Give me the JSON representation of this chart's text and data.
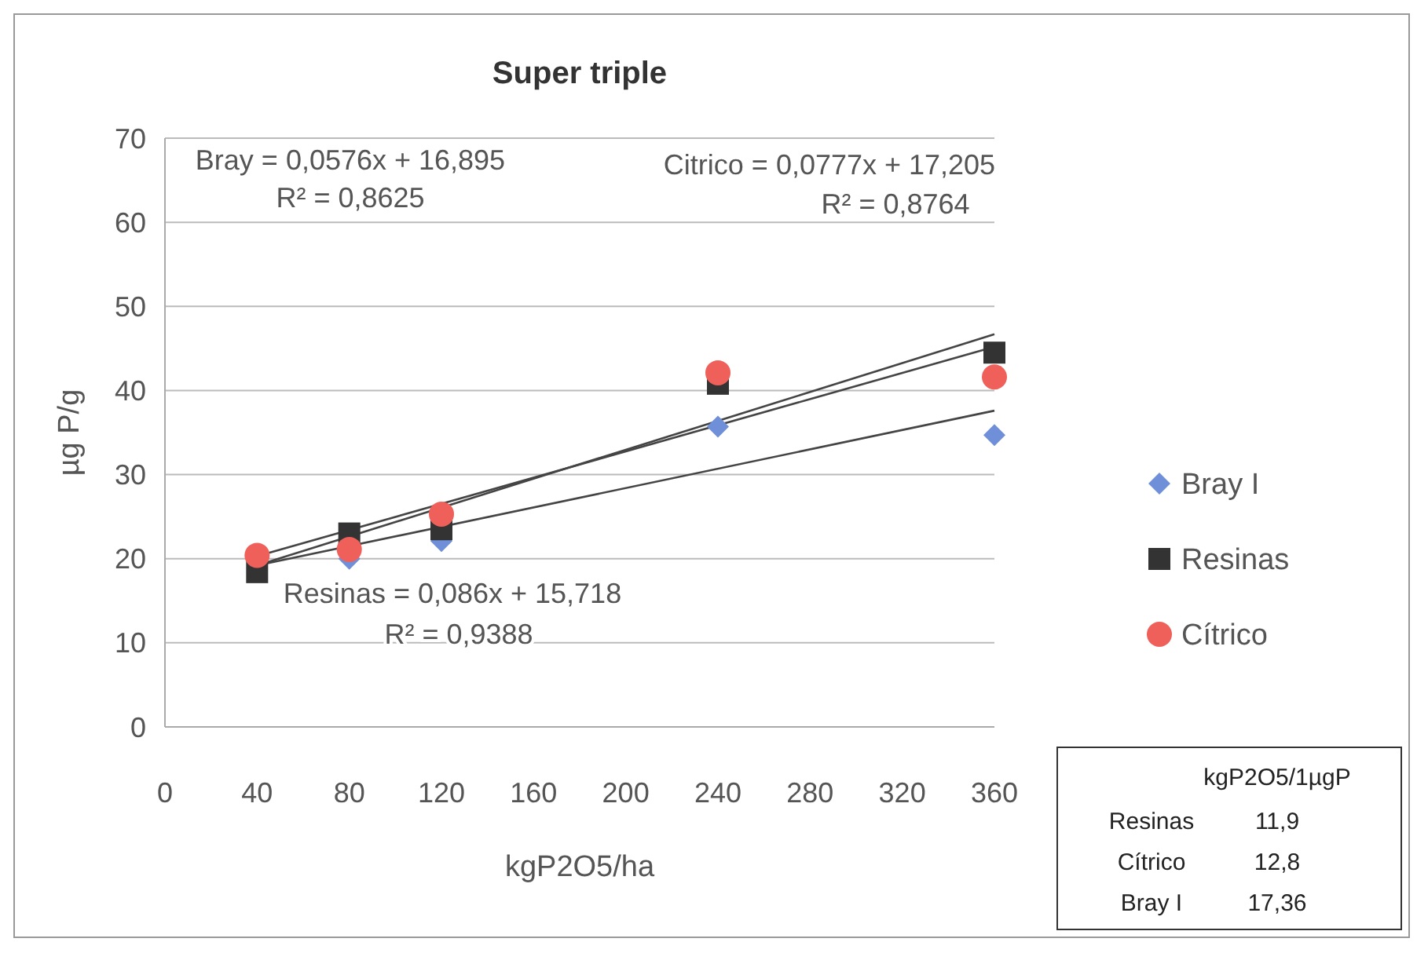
{
  "chart_data": {
    "type": "scatter",
    "title": "Super triple",
    "xlabel": "kgP2O5/ha",
    "ylabel": "µg P/g",
    "x": [
      40,
      80,
      120,
      240,
      360
    ],
    "xlim": [
      0,
      360
    ],
    "xticks": [
      0,
      40,
      80,
      120,
      160,
      200,
      240,
      280,
      320,
      360
    ],
    "ylim": [
      0,
      70
    ],
    "yticks": [
      0,
      10,
      20,
      30,
      40,
      50,
      60,
      70
    ],
    "grid": "y",
    "legend": "right",
    "series": [
      {
        "name": "Bray I",
        "color": "#6f8fd8",
        "marker": "diamond",
        "values": [
          null,
          20,
          22.1,
          35.7,
          34.7
        ]
      },
      {
        "name": "Resinas",
        "color": "#333333",
        "marker": "square",
        "values": [
          18.4,
          23,
          23.5,
          40.8,
          44.5
        ]
      },
      {
        "name": "Cítrico",
        "color": "#f0605a",
        "marker": "circle",
        "values": [
          20.4,
          21.1,
          25.3,
          42.1,
          41.6
        ]
      },
      {
        "type": "line",
        "color": "#444444",
        "marker": "none",
        "values": [
          19.2,
          null,
          null,
          null,
          37.6
        ]
      },
      {
        "type": "line",
        "color": "#444444",
        "marker": "none",
        "values": [
          19.2,
          null,
          null,
          null,
          46.7
        ]
      },
      {
        "type": "line",
        "color": "#444444",
        "marker": "none",
        "values": [
          20.3,
          null,
          null,
          null,
          45.2
        ]
      }
    ],
    "annotations": [
      "Bray = 0,0576x + 16,895",
      "R² = 0,8625",
      "Citrico = 0,0777x + 17,205",
      "R² = 0,8764",
      "Resinas = 0,086x + 15,718",
      "R² = 0,9388",
      "kgP2O5/1µgP",
      "Resinas",
      "11,9",
      "Cítrico",
      "12,8",
      "Bray I",
      "17,36"
    ]
  }
}
